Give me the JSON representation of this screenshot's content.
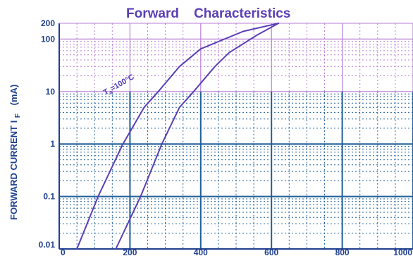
{
  "chart_data": {
    "type": "line",
    "title": "Forward    Characteristics",
    "xlabel": "",
    "ylabel": "FORWARD CURRENT   I",
    "ylabel_subscript": "F",
    "ylabel_unit": "(mA)",
    "xlim": [
      0,
      1000
    ],
    "ylim": [
      0.01,
      200
    ],
    "y_scale": "log",
    "grid": true,
    "x_ticks": [
      {
        "value": 0,
        "label": "0"
      },
      {
        "value": 200,
        "label": "200"
      },
      {
        "value": 400,
        "label": "400"
      },
      {
        "value": 600,
        "label": "600"
      },
      {
        "value": 800,
        "label": "800"
      },
      {
        "value": 1000,
        "label": "1000"
      }
    ],
    "y_ticks": [
      {
        "value": 0.01,
        "label": "0.01"
      },
      {
        "value": 0.1,
        "label": "0.1"
      },
      {
        "value": 1,
        "label": "1"
      },
      {
        "value": 10,
        "label": "10"
      },
      {
        "value": 100,
        "label": "100"
      },
      {
        "value": 200,
        "label": "200"
      }
    ],
    "series": [
      {
        "name": "T_a=100°C",
        "label_main": "T",
        "label_sub": "a",
        "label_rest": "=100°C",
        "color": "#5a3fb5",
        "x": [
          50,
          110,
          180,
          240,
          280,
          340,
          400,
          520,
          620
        ],
        "y": [
          0.01,
          0.1,
          1,
          5,
          10,
          30,
          65,
          140,
          200
        ]
      },
      {
        "name": "",
        "label_main": "",
        "label_sub": "",
        "label_rest": "",
        "color": "#5a3fb5",
        "x": [
          160,
          230,
          290,
          340,
          380,
          440,
          480,
          560,
          620
        ],
        "y": [
          0.01,
          0.1,
          1,
          5,
          10,
          30,
          55,
          120,
          200
        ]
      }
    ],
    "colors": {
      "background": "#ffffff",
      "grid_upper": "#b77fd6",
      "grid_lower": "#1f5f99",
      "ticks": "#1f3f8f",
      "title": "#5a3fb5",
      "accent": "#45c9e8"
    }
  }
}
